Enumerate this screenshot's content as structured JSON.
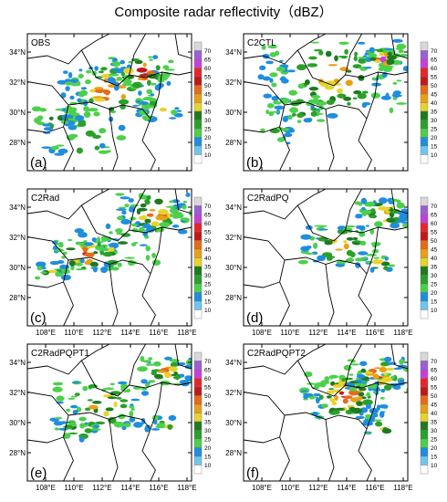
{
  "title": "Composite radar reflectivity（dBZ）",
  "colorbar": {
    "levels": [
      "70",
      "65",
      "60",
      "55",
      "50",
      "45",
      "40",
      "35",
      "30",
      "25",
      "20",
      "15",
      "10"
    ],
    "colors": [
      "#d8d8d8",
      "#9a5fd6",
      "#c640d8",
      "#e8242a",
      "#c21818",
      "#e86a18",
      "#e8a018",
      "#e6d42c",
      "#1f7a1f",
      "#2aa02a",
      "#4cd04c",
      "#1f8de0",
      "#6ec6f0",
      "#ffffff"
    ]
  },
  "colors": {
    "border": "#000000",
    "coast": "#000000"
  },
  "chart_data": [
    {
      "type": "heatmap",
      "panel": "(a)",
      "label": "OBS",
      "letter": "(a)",
      "xlabel": "",
      "ylabel": "",
      "lon_ticks": [],
      "lat_ticks": [
        "34°N",
        "32°N",
        "30°N",
        "28°N"
      ],
      "lon_range": [
        106,
        118.5
      ],
      "lat_range": [
        26.5,
        35.5
      ]
    },
    {
      "type": "heatmap",
      "panel": "(b)",
      "label": "C2CTL",
      "letter": "(b)",
      "xlabel": "",
      "ylabel": "",
      "lon_ticks": [],
      "lat_ticks": [
        "34°N",
        "32°N",
        "30°N",
        "28°N"
      ],
      "lon_range": [
        106,
        118.5
      ],
      "lat_range": [
        26.5,
        35.5
      ]
    },
    {
      "type": "heatmap",
      "panel": "(c)",
      "label": "C2Rad",
      "letter": "(c)",
      "lon_ticks": [
        "108°E",
        "110°E",
        "112°E",
        "114°E",
        "116°E",
        "118°E"
      ],
      "lat_ticks": [
        "34°N",
        "32°N",
        "30°N",
        "28°N"
      ],
      "lon_range": [
        106,
        118.5
      ],
      "lat_range": [
        26.5,
        35.5
      ]
    },
    {
      "type": "heatmap",
      "panel": "(d)",
      "label": "C2RadPQ",
      "letter": "(d)",
      "lon_ticks": [
        "108°E",
        "110°E",
        "112°E",
        "114°E",
        "116°E",
        "118°E"
      ],
      "lat_ticks": [
        "34°N",
        "32°N",
        "30°N",
        "28°N"
      ],
      "lon_range": [
        106,
        118.5
      ],
      "lat_range": [
        26.5,
        35.5
      ]
    },
    {
      "type": "heatmap",
      "panel": "(e)",
      "label": "C2RadPQPT1",
      "letter": "(e)",
      "lon_ticks": [
        "108°E",
        "110°E",
        "112°E",
        "114°E",
        "116°E",
        "118°E"
      ],
      "lat_ticks": [
        "34°N",
        "32°N",
        "30°N",
        "28°N"
      ],
      "lon_range": [
        106,
        118.5
      ],
      "lat_range": [
        26.5,
        35.5
      ]
    },
    {
      "type": "heatmap",
      "panel": "(f)",
      "label": "C2RadPQPT2",
      "letter": "(f)",
      "lon_ticks": [
        "108°E",
        "110°E",
        "112°E",
        "114°E",
        "116°E",
        "118°E"
      ],
      "lat_ticks": [
        "34°N",
        "32°N",
        "30°N",
        "28°N"
      ],
      "lon_range": [
        106,
        118.5
      ],
      "lat_range": [
        26.5,
        35.5
      ]
    }
  ]
}
